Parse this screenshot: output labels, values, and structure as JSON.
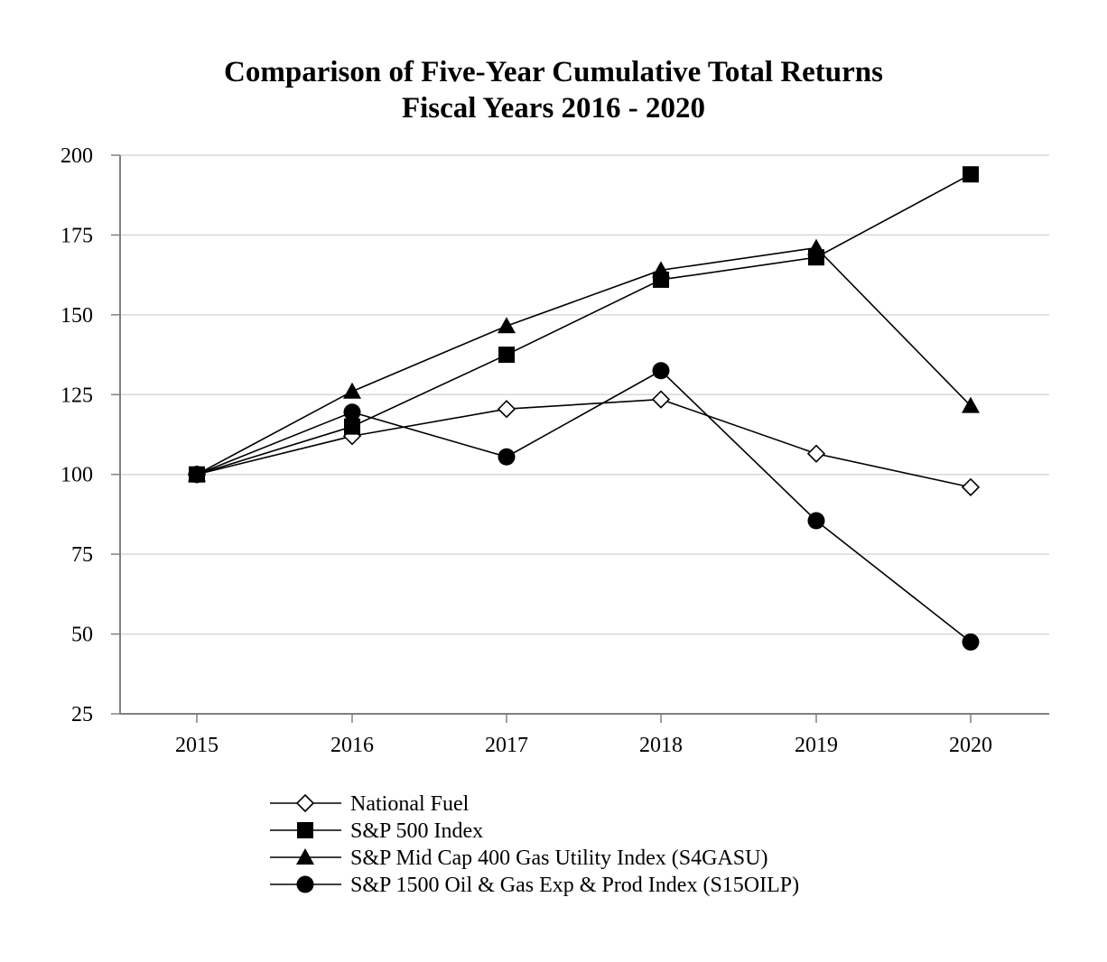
{
  "chart_data": {
    "type": "line",
    "title": "Comparison of Five-Year Cumulative Total Returns",
    "subtitle": "Fiscal Years 2016 - 2020",
    "xlabel": "",
    "ylabel": "",
    "x": [
      "2015",
      "2016",
      "2017",
      "2018",
      "2019",
      "2020"
    ],
    "ylim": [
      25,
      200
    ],
    "yticks": [
      "200",
      "175",
      "150",
      "125",
      "100",
      "75",
      "50",
      "25"
    ],
    "grid": true,
    "legend_position": "bottom",
    "series": [
      {
        "name": "National Fuel",
        "marker": "diamond-open",
        "values": [
          100,
          112,
          120.5,
          123.5,
          106.5,
          96
        ]
      },
      {
        "name": "S&P 500 Index",
        "marker": "square",
        "values": [
          100,
          115,
          137.5,
          161,
          168,
          194
        ]
      },
      {
        "name": "S&P Mid Cap 400 Gas Utility Index (S4GASU)",
        "marker": "triangle",
        "values": [
          100,
          126,
          146.5,
          164,
          171,
          121.5
        ]
      },
      {
        "name": "S&P 1500 Oil & Gas Exp & Prod Index (S15OILP)",
        "marker": "circle",
        "values": [
          100,
          119.5,
          105.5,
          132.5,
          85.5,
          47.5
        ]
      }
    ]
  }
}
